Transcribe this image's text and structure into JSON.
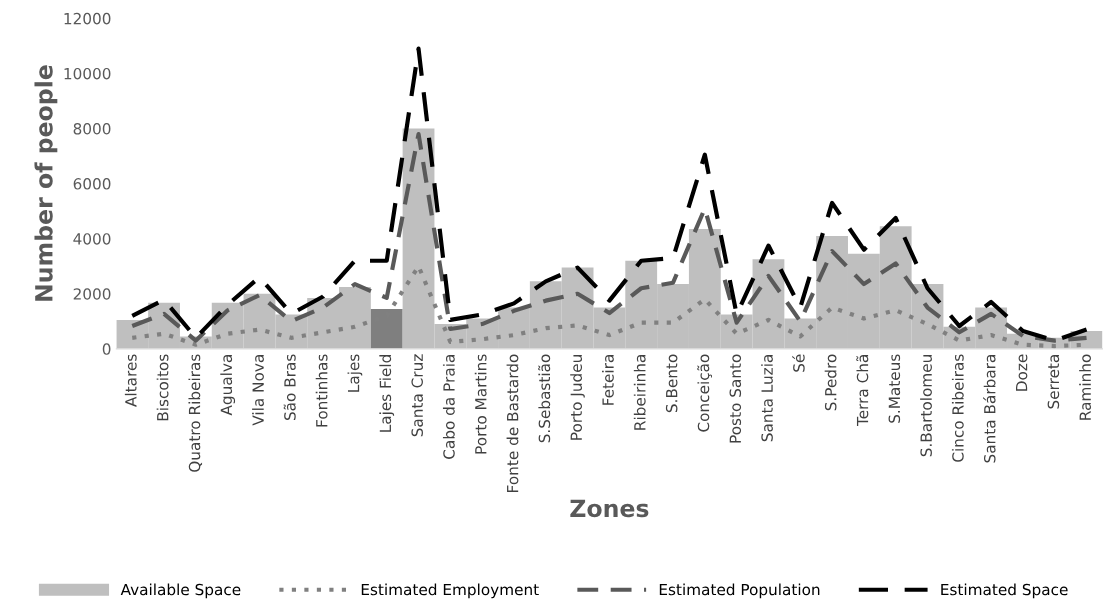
{
  "chart_data": {
    "type": "bar",
    "xlabel": "Zones",
    "ylabel": "Number of people",
    "categories": [
      "Altares",
      "Biscoitos",
      "Quatro Ribeiras",
      "Agualva",
      "Vila Nova",
      "São Bras",
      "Fontinhas",
      "Lajes",
      "Lajes Field",
      "Santa Cruz",
      "Cabo da Praia",
      "Porto Martins",
      "Fonte de Bastardo",
      "S.Sebastião",
      "Porto Judeu",
      "Feteira",
      "Ribeirinha",
      "S.Bento",
      "Conceição",
      "Posto Santo",
      "Santa Luzia",
      "Sé",
      "S.Pedro",
      "Terra Chã",
      "S.Mateus",
      "S.Bartolomeu",
      "Cinco Ribeiras",
      "Santa Bárbara",
      "Doze",
      "Serreta",
      "Raminho"
    ],
    "series": [
      {
        "name": "Available Space",
        "color": "#bfbfbf",
        "colors": [
          "#bfbfbf",
          "#bfbfbf",
          "#bfbfbf",
          "#bfbfbf",
          "#bfbfbf",
          "#bfbfbf",
          "#bfbfbf",
          "#bfbfbf",
          "#7f7f7f",
          "#bfbfbf",
          "#bfbfbf",
          "#bfbfbf",
          "#bfbfbf",
          "#bfbfbf",
          "#bfbfbf",
          "#bfbfbf",
          "#bfbfbf",
          "#bfbfbf",
          "#bfbfbf",
          "#bfbfbf",
          "#bfbfbf",
          "#bfbfbf",
          "#bfbfbf",
          "#bfbfbf",
          "#bfbfbf",
          "#bfbfbf",
          "#bfbfbf",
          "#bfbfbf",
          "#bfbfbf",
          "#bfbfbf",
          "#bfbfbf"
        ],
        "values": [
          1050,
          1670,
          450,
          1670,
          2000,
          1250,
          1850,
          2250,
          1450,
          8000,
          900,
          1100,
          1500,
          2450,
          2950,
          1500,
          3200,
          2350,
          4350,
          1250,
          3250,
          1100,
          4100,
          3450,
          4450,
          2350,
          800,
          1500,
          550,
          400,
          650
        ]
      },
      {
        "name": "Estimated Employment",
        "type": "line",
        "line_style": "dotted",
        "color": "#808080",
        "values": [
          400,
          550,
          150,
          550,
          700,
          400,
          600,
          800,
          1200,
          3000,
          250,
          350,
          500,
          750,
          850,
          500,
          950,
          950,
          1800,
          550,
          1050,
          450,
          1500,
          1100,
          1400,
          900,
          300,
          500,
          150,
          100,
          150
        ]
      },
      {
        "name": "Estimated Population",
        "type": "line",
        "line_style": "dashed",
        "color": "#595959",
        "values": [
          830,
          1270,
          300,
          1400,
          1950,
          1000,
          1500,
          2350,
          1850,
          7800,
          720,
          900,
          1380,
          1750,
          2000,
          1300,
          2200,
          2400,
          5100,
          950,
          2650,
          1000,
          3550,
          2350,
          3100,
          1500,
          600,
          1270,
          470,
          300,
          400
        ]
      },
      {
        "name": "Estimated Space",
        "type": "line",
        "line_style": "longdashed",
        "color": "#000000",
        "values": [
          1200,
          1780,
          400,
          1600,
          2600,
          1270,
          1900,
          3200,
          3200,
          10900,
          1050,
          1250,
          1650,
          2450,
          2950,
          1750,
          3200,
          3300,
          7050,
          1250,
          3750,
          1500,
          5300,
          3600,
          4750,
          2200,
          830,
          1700,
          650,
          300,
          700
        ]
      }
    ],
    "ylim": [
      0,
      12000
    ],
    "yticks": [
      0,
      2000,
      4000,
      6000,
      8000,
      10000,
      12000
    ],
    "grid": false,
    "legend": "bottom"
  }
}
